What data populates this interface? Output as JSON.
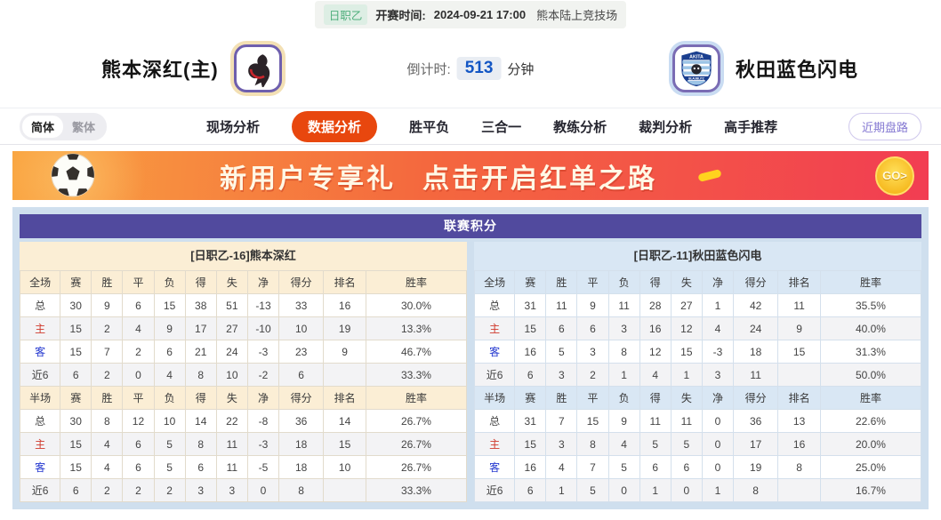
{
  "top_bar": {
    "league_badge": "日职乙",
    "kickoff_label": "开赛时间:",
    "kickoff_time": "2024-09-21 17:00",
    "venue": "熊本陆上竞技场"
  },
  "match_header": {
    "home_team": "熊本深红(主)",
    "away_team": "秋田蓝色闪电",
    "away_crest_text": "AKITA",
    "away_crest_subtext": "BLAUBLITZ",
    "countdown_label": "倒计时:",
    "countdown_value": "513",
    "countdown_unit": "分钟"
  },
  "nav": {
    "language_options": [
      {
        "name": "simplified",
        "label": "简体",
        "active": true
      },
      {
        "name": "traditional",
        "label": "繁体",
        "active": false
      }
    ],
    "tabs": [
      {
        "name": "live-analysis",
        "label": "现场分析",
        "active": false
      },
      {
        "name": "data-analysis",
        "label": "数据分析",
        "active": true
      },
      {
        "name": "win-draw-lose",
        "label": "胜平负",
        "active": false
      },
      {
        "name": "three-in-one",
        "label": "三合一",
        "active": false
      },
      {
        "name": "coach-analysis",
        "label": "教练分析",
        "active": false
      },
      {
        "name": "referee-analysis",
        "label": "裁判分析",
        "active": false
      },
      {
        "name": "expert-picks",
        "label": "高手推荐",
        "active": false
      }
    ],
    "recent_odds_button": "近期盘路"
  },
  "banner": {
    "text_main": "新用户专享礼",
    "text_sub": "点击开启红单之路",
    "cta": "GO>"
  },
  "league_table": {
    "title": "联赛积分",
    "columns": [
      "赛",
      "胜",
      "平",
      "负",
      "得",
      "失",
      "净",
      "得分",
      "排名",
      "胜率"
    ],
    "left": {
      "header": "[日职乙-16]熊本深红",
      "sections": [
        {
          "scope": "全场",
          "rows": [
            {
              "label": "总",
              "type": "total",
              "values": [
                "30",
                "9",
                "6",
                "15",
                "38",
                "51",
                "-13",
                "33",
                "16",
                "30.0%"
              ]
            },
            {
              "label": "主",
              "type": "home",
              "values": [
                "15",
                "2",
                "4",
                "9",
                "17",
                "27",
                "-10",
                "10",
                "19",
                "13.3%"
              ]
            },
            {
              "label": "客",
              "type": "away",
              "values": [
                "15",
                "7",
                "2",
                "6",
                "21",
                "24",
                "-3",
                "23",
                "9",
                "46.7%"
              ]
            },
            {
              "label": "近6",
              "type": "recent",
              "values": [
                "6",
                "2",
                "0",
                "4",
                "8",
                "10",
                "-2",
                "6",
                "",
                "33.3%"
              ]
            }
          ]
        },
        {
          "scope": "半场",
          "rows": [
            {
              "label": "总",
              "type": "total",
              "values": [
                "30",
                "8",
                "12",
                "10",
                "14",
                "22",
                "-8",
                "36",
                "14",
                "26.7%"
              ]
            },
            {
              "label": "主",
              "type": "home",
              "values": [
                "15",
                "4",
                "6",
                "5",
                "8",
                "11",
                "-3",
                "18",
                "15",
                "26.7%"
              ]
            },
            {
              "label": "客",
              "type": "away",
              "values": [
                "15",
                "4",
                "6",
                "5",
                "6",
                "11",
                "-5",
                "18",
                "10",
                "26.7%"
              ]
            },
            {
              "label": "近6",
              "type": "recent",
              "values": [
                "6",
                "2",
                "2",
                "2",
                "3",
                "3",
                "0",
                "8",
                "",
                "33.3%"
              ]
            }
          ]
        }
      ]
    },
    "right": {
      "header": "[日职乙-11]秋田蓝色闪电",
      "sections": [
        {
          "scope": "全场",
          "rows": [
            {
              "label": "总",
              "type": "total",
              "values": [
                "31",
                "11",
                "9",
                "11",
                "28",
                "27",
                "1",
                "42",
                "11",
                "35.5%"
              ]
            },
            {
              "label": "主",
              "type": "home",
              "values": [
                "15",
                "6",
                "6",
                "3",
                "16",
                "12",
                "4",
                "24",
                "9",
                "40.0%"
              ]
            },
            {
              "label": "客",
              "type": "away",
              "values": [
                "16",
                "5",
                "3",
                "8",
                "12",
                "15",
                "-3",
                "18",
                "15",
                "31.3%"
              ]
            },
            {
              "label": "近6",
              "type": "recent",
              "values": [
                "6",
                "3",
                "2",
                "1",
                "4",
                "1",
                "3",
                "11",
                "",
                "50.0%"
              ]
            }
          ]
        },
        {
          "scope": "半场",
          "rows": [
            {
              "label": "总",
              "type": "total",
              "values": [
                "31",
                "7",
                "15",
                "9",
                "11",
                "11",
                "0",
                "36",
                "13",
                "22.6%"
              ]
            },
            {
              "label": "主",
              "type": "home",
              "values": [
                "15",
                "3",
                "8",
                "4",
                "5",
                "5",
                "0",
                "17",
                "16",
                "20.0%"
              ]
            },
            {
              "label": "客",
              "type": "away",
              "values": [
                "16",
                "4",
                "7",
                "5",
                "6",
                "6",
                "0",
                "19",
                "8",
                "25.0%"
              ]
            },
            {
              "label": "近6",
              "type": "recent",
              "values": [
                "6",
                "1",
                "5",
                "0",
                "1",
                "0",
                "1",
                "8",
                "",
                "16.7%"
              ]
            }
          ]
        }
      ]
    }
  },
  "colors": {
    "accent_orange": "#e8470e",
    "table_header_purple": "#514a9e",
    "home_theme_cream": "#fbeed5",
    "away_theme_blue": "#d9e7f4",
    "panel_background": "#cfdfee",
    "home_row_red": "#d03a2c",
    "away_row_blue": "#2438cf",
    "countdown_blue": "#1356c4",
    "league_badge_green": "#4fae7c"
  }
}
